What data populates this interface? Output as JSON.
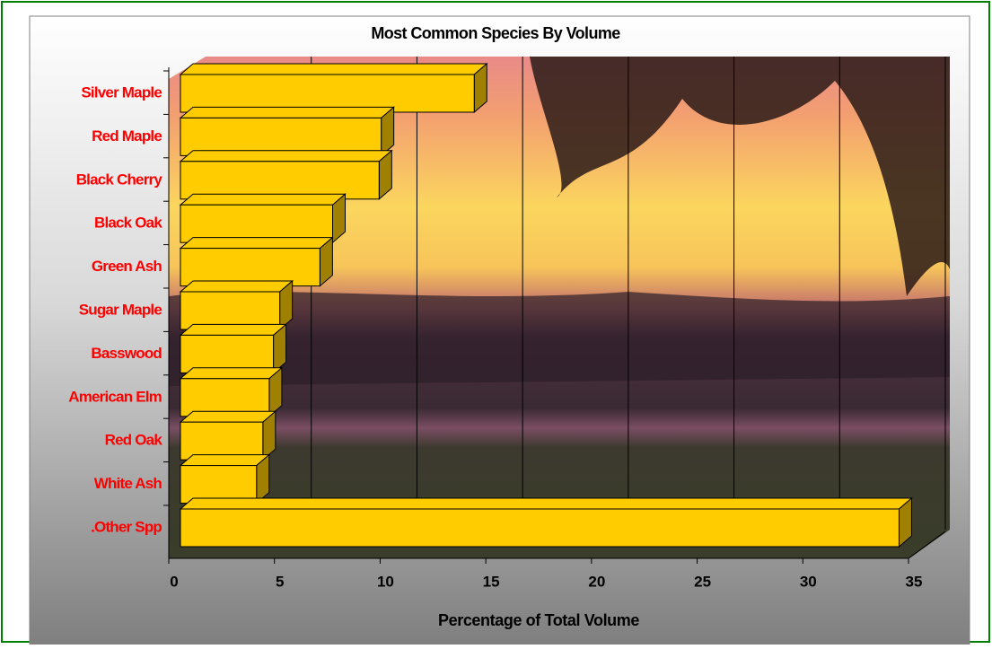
{
  "chart_data": {
    "type": "bar",
    "orientation": "horizontal",
    "title": "Most Common Species By Volume",
    "xlabel": "Percentage of Total Volume",
    "categories": [
      "Silver Maple",
      "Red Maple",
      "Black Cherry",
      "Black Oak",
      "Green Ash",
      "Sugar Maple",
      "Basswood",
      "American Elm",
      "Red Oak",
      "White Ash",
      ".Other Spp"
    ],
    "values": [
      13.9,
      9.5,
      9.4,
      7.2,
      6.6,
      4.7,
      4.4,
      4.2,
      3.9,
      3.6,
      34.0
    ],
    "color": "#ffcc00",
    "xlim": [
      0,
      35
    ],
    "xticks": [
      0,
      5,
      10,
      15,
      20,
      25,
      30,
      35
    ],
    "grid": true
  }
}
